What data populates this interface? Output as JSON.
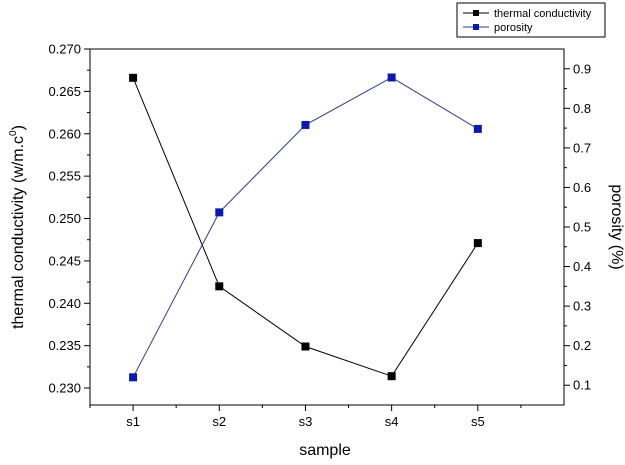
{
  "chart_data": {
    "type": "line",
    "categories": [
      "s1",
      "s2",
      "s3",
      "s4",
      "s5"
    ],
    "xlabel": "sample",
    "ylabel_left": "thermal conductivity (w/m.c",
    "ylabel_left_sup": "0",
    "ylabel_left_close": ")",
    "ylabel_right": "porosity (%)",
    "ylim_left": [
      0.228,
      0.27
    ],
    "yticks_left": [
      "0.230",
      "0.235",
      "0.240",
      "0.245",
      "0.250",
      "0.255",
      "0.260",
      "0.265",
      "0.270"
    ],
    "ylim_right": [
      0.05,
      0.95
    ],
    "yticks_right": [
      "0.1",
      "0.2",
      "0.3",
      "0.4",
      "0.5",
      "0.6",
      "0.7",
      "0.8",
      "0.9"
    ],
    "grid": false,
    "legend_position": "top-right-outside",
    "series": [
      {
        "name": "thermal conductivity",
        "axis": "left",
        "color": "#000000",
        "marker_color": "#000000",
        "values": [
          0.2666,
          0.242,
          0.2349,
          0.2314,
          0.2471
        ]
      },
      {
        "name": "porosity",
        "axis": "right",
        "color": "#2a3f8f",
        "marker_color": "#0b1aa8",
        "values": [
          0.12,
          0.537,
          0.758,
          0.878,
          0.748
        ]
      }
    ]
  }
}
